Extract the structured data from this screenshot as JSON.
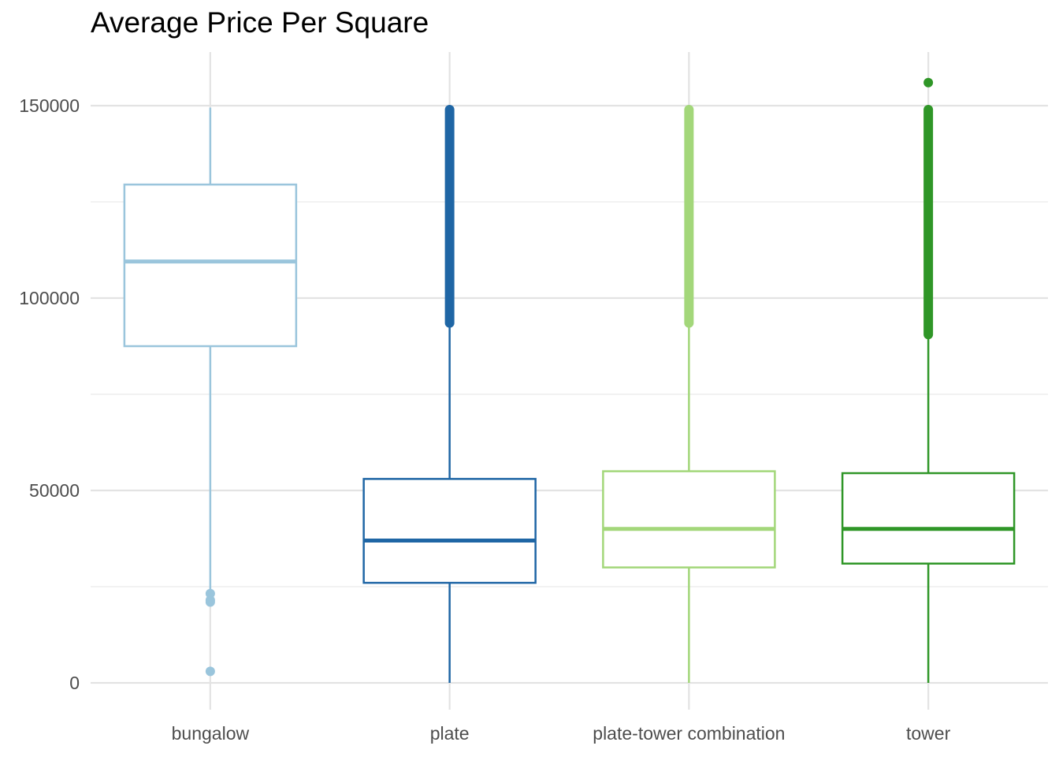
{
  "chart_data": {
    "type": "box",
    "title": "Average Price Per Square",
    "xlabel": "",
    "ylabel": "",
    "ylim": [
      -7000,
      163000
    ],
    "y_ticks": [
      0,
      50000,
      100000,
      150000
    ],
    "y_tick_labels": [
      "0",
      "50000",
      "100000",
      "150000"
    ],
    "y_minor_ticks": [
      25000,
      75000,
      125000
    ],
    "grid": true,
    "legend": "none",
    "categories": [
      "bungalow",
      "plate",
      "plate-tower combination",
      "tower"
    ],
    "series": [
      {
        "category": "bungalow",
        "color": "#9ac5dc",
        "whisker_low": 23500,
        "q1": 87500,
        "median": 109500,
        "q3": 129500,
        "whisker_high": 149500,
        "outliers": [
          3000,
          21000,
          21500,
          23200
        ],
        "outlier_band": null
      },
      {
        "category": "plate",
        "color": "#1f66a5",
        "whisker_low": 0,
        "q1": 26000,
        "median": 37000,
        "q3": 53000,
        "whisker_high": 92500,
        "outliers": [],
        "outlier_band": [
          92500,
          150000
        ]
      },
      {
        "category": "plate-tower combination",
        "color": "#a3d77a",
        "whisker_low": 0,
        "q1": 30000,
        "median": 40000,
        "q3": 55000,
        "whisker_high": 92500,
        "outliers": [],
        "outlier_band": [
          92500,
          150000
        ]
      },
      {
        "category": "tower",
        "color": "#2f9627",
        "whisker_low": 0,
        "q1": 31000,
        "median": 40000,
        "q3": 54500,
        "whisker_high": 89500,
        "outliers": [
          156000
        ],
        "outlier_band": [
          89500,
          150000
        ]
      }
    ]
  }
}
